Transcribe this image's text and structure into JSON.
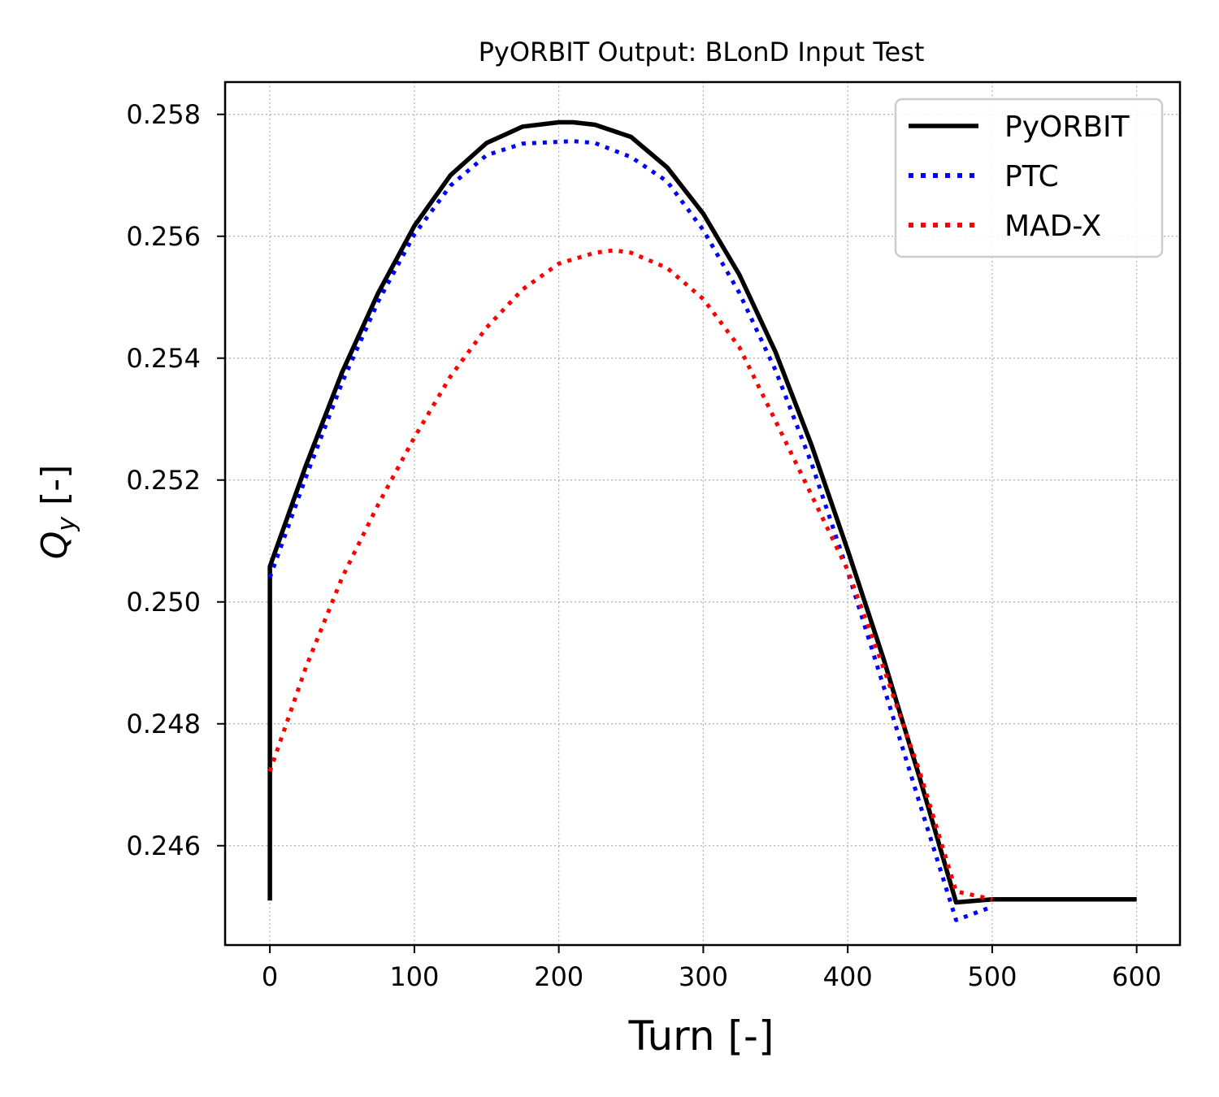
{
  "chart_data": {
    "type": "line",
    "title": "PyORBIT Output: BLonD Input Test",
    "xlabel": "Turn [-]",
    "ylabel_main": "Q",
    "ylabel_sub": "y",
    "ylabel_unit": " [-]",
    "xlim": [
      -31,
      630
    ],
    "ylim": [
      0.24437,
      0.25853
    ],
    "xticks": [
      0,
      100,
      200,
      300,
      400,
      500,
      600
    ],
    "xtick_labels": [
      "0",
      "100",
      "200",
      "300",
      "400",
      "500",
      "600"
    ],
    "yticks": [
      0.246,
      0.248,
      0.25,
      0.252,
      0.254,
      0.256,
      0.258
    ],
    "ytick_labels": [
      "0.246",
      "0.248",
      "0.250",
      "0.252",
      "0.254",
      "0.256",
      "0.258"
    ],
    "grid": true,
    "legend_position": "top-right",
    "series": [
      {
        "name": "PyORBIT",
        "color": "#000000",
        "style": "solid",
        "x": [
          0,
          0,
          25,
          50,
          75,
          100,
          125,
          150,
          175,
          200,
          210,
          225,
          250,
          275,
          300,
          325,
          350,
          375,
          400,
          425,
          450,
          475,
          500,
          600
        ],
        "y": [
          0.2451,
          0.25058,
          0.25224,
          0.25377,
          0.25507,
          0.25617,
          0.257,
          0.25753,
          0.2578,
          0.25787,
          0.25787,
          0.25783,
          0.25763,
          0.25713,
          0.25637,
          0.25537,
          0.2541,
          0.25257,
          0.25085,
          0.24905,
          0.2471,
          0.24507,
          0.24512,
          0.24512
        ]
      },
      {
        "name": "PTC",
        "color": "#0000ff",
        "style": "dotted",
        "x": [
          0,
          25,
          50,
          75,
          100,
          125,
          150,
          175,
          200,
          210,
          225,
          250,
          275,
          300,
          325,
          350,
          375,
          400,
          425,
          450,
          475,
          500
        ],
        "y": [
          0.2504,
          0.25205,
          0.2536,
          0.25493,
          0.25603,
          0.25683,
          0.25733,
          0.25752,
          0.25755,
          0.25756,
          0.25753,
          0.2573,
          0.2569,
          0.2561,
          0.25507,
          0.2538,
          0.25227,
          0.2505,
          0.2486,
          0.24668,
          0.24478,
          0.245
        ]
      },
      {
        "name": "MAD-X",
        "color": "#ff0000",
        "style": "dotted",
        "x": [
          0,
          25,
          50,
          75,
          100,
          125,
          150,
          175,
          200,
          225,
          238,
          250,
          275,
          300,
          325,
          350,
          375,
          400,
          425,
          450,
          475,
          500
        ],
        "y": [
          0.24722,
          0.24893,
          0.2504,
          0.2516,
          0.2527,
          0.2537,
          0.2545,
          0.25513,
          0.25555,
          0.25573,
          0.25577,
          0.25573,
          0.25548,
          0.25497,
          0.25418,
          0.25297,
          0.25175,
          0.25052,
          0.2489,
          0.2472,
          0.24525,
          0.24512
        ]
      }
    ]
  }
}
